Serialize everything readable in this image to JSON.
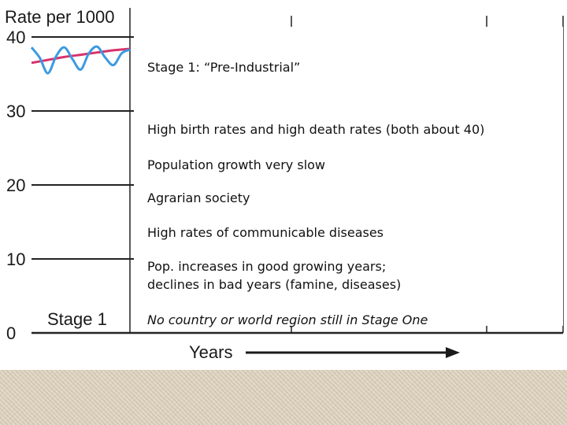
{
  "chart_data": {
    "type": "line",
    "ylabel": "Rate per 1000",
    "ylim": [
      0,
      40
    ],
    "yticks": [
      0,
      10,
      20,
      30,
      40
    ],
    "xlabel": "Years",
    "stage_label": "Stage 1",
    "grid": true,
    "series": [
      {
        "color": "#d6336c",
        "x": [
          0,
          1,
          2,
          3,
          4,
          5,
          6
        ],
        "y": [
          36.5,
          36.9,
          37.3,
          37.6,
          37.9,
          38.2,
          38.4
        ]
      },
      {
        "color": "#3b9ae1",
        "x": [
          0,
          0.5,
          1,
          1.5,
          2,
          2.5,
          3,
          3.5,
          4,
          4.5,
          5,
          5.5,
          6
        ],
        "y": [
          38.6,
          37.2,
          35.1,
          37.4,
          38.6,
          37.0,
          35.6,
          37.8,
          38.7,
          37.2,
          36.2,
          37.8,
          38.3
        ]
      }
    ]
  },
  "info_box": {
    "title": "Stage 1:  “Pre-Industrial”",
    "items": [
      "High birth rates and high death rates (both about 40)",
      "Population growth very slow",
      "Agrarian society",
      "High rates of communicable diseases"
    ],
    "multi_line": [
      "Pop. increases in good growing years;",
      "declines in bad years (famine, diseases)"
    ],
    "note": "No country or world region still in Stage One"
  }
}
